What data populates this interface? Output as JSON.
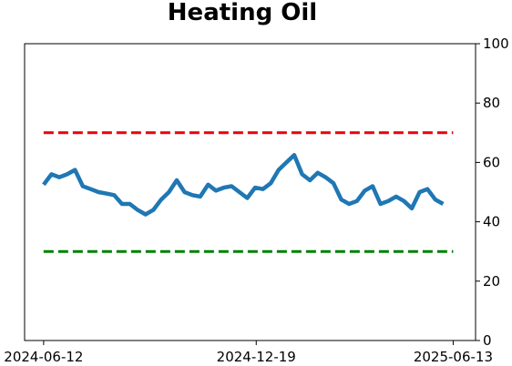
{
  "chart_data": {
    "type": "line",
    "title": "Heating Oil",
    "x": [
      "2024-06-12",
      "2024-06-19",
      "2024-06-26",
      "2024-07-03",
      "2024-07-10",
      "2024-07-17",
      "2024-07-24",
      "2024-07-31",
      "2024-08-07",
      "2024-08-14",
      "2024-08-21",
      "2024-08-28",
      "2024-09-04",
      "2024-09-11",
      "2024-09-18",
      "2024-09-25",
      "2024-10-02",
      "2024-10-09",
      "2024-10-16",
      "2024-10-23",
      "2024-10-30",
      "2024-11-06",
      "2024-11-13",
      "2024-11-20",
      "2024-11-27",
      "2024-12-04",
      "2024-12-11",
      "2024-12-18",
      "2024-12-25",
      "2025-01-01",
      "2025-01-08",
      "2025-01-15",
      "2025-01-22",
      "2025-01-29",
      "2025-02-05",
      "2025-02-12",
      "2025-02-19",
      "2025-02-26",
      "2025-03-05",
      "2025-03-12",
      "2025-03-19",
      "2025-03-26",
      "2025-04-02",
      "2025-04-09",
      "2025-04-16",
      "2025-04-23",
      "2025-04-30",
      "2025-05-07",
      "2025-05-14",
      "2025-05-21",
      "2025-05-28",
      "2025-06-04"
    ],
    "series": [
      {
        "color": "#1f77b4",
        "values": [
          52.5,
          56,
          55,
          56,
          57.5,
          52,
          51,
          50,
          49.5,
          49,
          46,
          46,
          44,
          42.5,
          44,
          47.5,
          50,
          54,
          50,
          49,
          48.5,
          52.5,
          50.5,
          51.5,
          52,
          50,
          48,
          51.5,
          51,
          53,
          57.5,
          60,
          62.5,
          56,
          54,
          56.5,
          55,
          53,
          47.5,
          46,
          47,
          50.5,
          52,
          46,
          47,
          48.5,
          47,
          44.5,
          50,
          51,
          47.5,
          46
        ]
      }
    ],
    "hlines": [
      {
        "value": 70,
        "color": "#e8000b"
      },
      {
        "value": 30,
        "color": "#008000"
      }
    ],
    "xlim": [
      "2024-05-26",
      "2025-07-03"
    ],
    "xticks": [
      "2024-06-12",
      "2024-12-19",
      "2025-06-13"
    ],
    "ylim": [
      0,
      100
    ],
    "yticks": [
      0,
      20,
      40,
      60,
      80,
      100
    ],
    "y_axis_side": "right"
  }
}
